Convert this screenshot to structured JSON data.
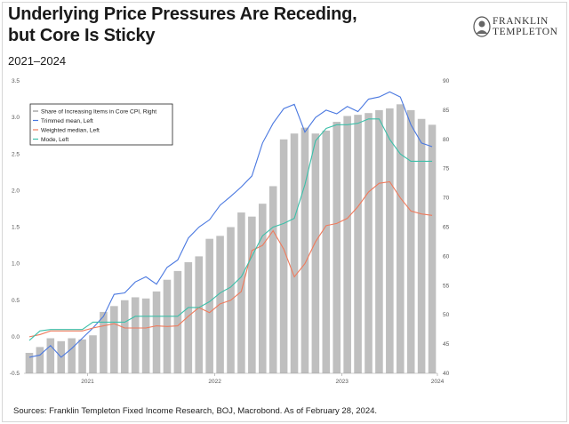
{
  "header": {
    "title_line1": "Underlying Price Pressures Are Receding,",
    "title_line2": "but Core Is Sticky",
    "subtitle": "2021–2024"
  },
  "logo": {
    "line1": "FRANKLIN",
    "line2": "TEMPLETON",
    "icon": "franklin-portrait-icon"
  },
  "footer": {
    "source": "Sources: Franklin Templeton Fixed Income Research, BOJ, Macrobond. As of February 28, 2024."
  },
  "colors": {
    "bar": "#bfbfbf",
    "trimmed": "#4a78e0",
    "median": "#ef7a5c",
    "mode": "#3cbfa9",
    "axis": "#555555"
  },
  "chart_data": {
    "type": "bar",
    "title": "Underlying Price Pressures Are Receding, but Core Is Sticky",
    "x_labels": [
      "2021",
      "2022",
      "2023",
      "2024"
    ],
    "y_left": {
      "ylim": [
        -0.5,
        3.5
      ],
      "ticks": [
        "-0.5",
        "0.0",
        "0.5",
        "1.0",
        "1.5",
        "2.0",
        "2.5",
        "3.0",
        "3.5"
      ]
    },
    "y_right": {
      "ylim": [
        40,
        90
      ],
      "ticks": [
        "40",
        "45",
        "50",
        "55",
        "60",
        "65",
        "70",
        "75",
        "80",
        "85",
        "90"
      ]
    },
    "legend": [
      "Share of Increasing Items in Core CPI, Right",
      "Trimmed mean, Left",
      "Weighted median, Left",
      "Mode, Left"
    ],
    "series": [
      {
        "name": "Share of Increasing Items in Core CPI, Right",
        "axis": "right",
        "values": [
          43.5,
          44.5,
          46,
          45.5,
          46,
          45.8,
          46.5,
          50.5,
          51.5,
          52.5,
          53,
          52.8,
          54,
          56,
          57.5,
          59,
          60,
          63,
          63.5,
          65,
          67.5,
          66.8,
          69,
          72,
          80,
          81,
          82,
          81,
          81.5,
          83,
          84,
          84.2,
          84.5,
          85,
          85.3,
          86,
          85,
          83.5,
          82.5
        ]
      },
      {
        "name": "Trimmed mean, Left",
        "axis": "left",
        "values": [
          -0.28,
          -0.25,
          -0.12,
          -0.28,
          -0.16,
          -0.02,
          0.12,
          0.28,
          0.58,
          0.6,
          0.75,
          0.82,
          0.72,
          0.95,
          1.05,
          1.35,
          1.5,
          1.6,
          1.8,
          1.92,
          2.05,
          2.2,
          2.65,
          2.92,
          3.12,
          3.18,
          2.8,
          3.0,
          3.1,
          3.05,
          3.15,
          3.08,
          3.25,
          3.28,
          3.35,
          3.28,
          2.9,
          2.65,
          2.6
        ]
      },
      {
        "name": "Weighted median, Left",
        "axis": "left",
        "values": [
          0.0,
          0.03,
          0.08,
          0.08,
          0.08,
          0.08,
          0.12,
          0.15,
          0.18,
          0.12,
          0.12,
          0.12,
          0.15,
          0.14,
          0.15,
          0.28,
          0.4,
          0.33,
          0.45,
          0.5,
          0.62,
          1.18,
          1.25,
          1.45,
          1.2,
          0.82,
          1.0,
          1.3,
          1.52,
          1.55,
          1.62,
          1.78,
          1.98,
          2.1,
          2.12,
          1.9,
          1.72,
          1.68,
          1.66
        ]
      },
      {
        "name": "Mode, Left",
        "axis": "left",
        "values": [
          -0.05,
          0.08,
          0.1,
          0.1,
          0.1,
          0.1,
          0.2,
          0.2,
          0.2,
          0.2,
          0.28,
          0.28,
          0.28,
          0.28,
          0.28,
          0.4,
          0.4,
          0.48,
          0.6,
          0.68,
          0.82,
          1.1,
          1.38,
          1.5,
          1.55,
          1.62,
          2.08,
          2.68,
          2.85,
          2.9,
          2.9,
          2.92,
          2.98,
          2.98,
          2.7,
          2.5,
          2.4,
          2.4,
          2.4
        ]
      }
    ]
  }
}
